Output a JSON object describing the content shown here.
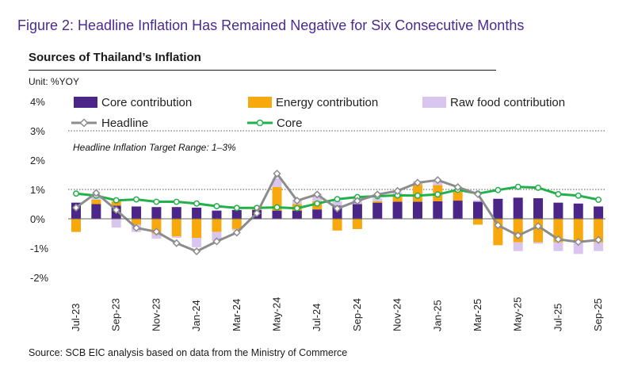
{
  "figure_title": "Figure 2: Headline Inflation Has Remained Negative for Six Consecutive Months",
  "source": "Source: SCB EIC analysis based on data from the Ministry of Commerce",
  "colors": {
    "core_contribution": "#4b2587",
    "energy_contribution": "#f7a80d",
    "raw_food_contribution": "#d9c6ee",
    "headline": "#8c8c8c",
    "core": "#22b04b",
    "title": "#4b2a8f"
  },
  "chart_data": {
    "type": "bar",
    "title": "Sources of Thailand’s Inflation",
    "ylabel": "Unit: %YOY",
    "xlabel": "",
    "ylim": [
      -2,
      4
    ],
    "yticks": [
      "-2%",
      "-1%",
      "0%",
      "1%",
      "2%",
      "3%",
      "4%"
    ],
    "ytick_values": [
      -2,
      -1,
      0,
      1,
      2,
      3,
      4
    ],
    "categories": [
      "Jul-23",
      "Aug-23",
      "Sep-23",
      "Oct-23",
      "Nov-23",
      "Dec-23",
      "Jan-24",
      "Feb-24",
      "Mar-24",
      "Apr-24",
      "May-24",
      "Jun-24",
      "Jul-24",
      "Aug-24",
      "Sep-24",
      "Oct-24",
      "Nov-24",
      "Dec-24",
      "Jan-25",
      "Feb-25",
      "Mar-25",
      "Apr-25",
      "May-25",
      "Jun-25",
      "Jul-25",
      "Aug-25",
      "Sep-25"
    ],
    "xtick_labels": [
      "Jul-23",
      "Sep-23",
      "Nov-23",
      "Jan-24",
      "Mar-24",
      "May-24",
      "Jul-24",
      "Sep-24",
      "Nov-24",
      "Jan-25",
      "Mar-25",
      "May-25",
      "Jul-25",
      "Sep-25"
    ],
    "series": [
      {
        "name": "Core contribution",
        "type": "bar",
        "values": [
          0.55,
          0.5,
          0.45,
          0.42,
          0.4,
          0.4,
          0.38,
          0.28,
          0.3,
          0.3,
          0.28,
          0.28,
          0.32,
          0.45,
          0.5,
          0.55,
          0.58,
          0.58,
          0.6,
          0.62,
          0.58,
          0.68,
          0.72,
          0.7,
          0.55,
          0.52,
          0.42
        ]
      },
      {
        "name": "Energy contribution",
        "type": "bar",
        "values": [
          -0.45,
          0.15,
          0.15,
          -0.2,
          -0.5,
          -0.6,
          -0.65,
          -0.45,
          -0.35,
          0.1,
          0.8,
          0.22,
          0.28,
          -0.4,
          -0.35,
          0.05,
          0.2,
          0.6,
          0.55,
          0.3,
          -0.2,
          -0.9,
          -0.8,
          -0.8,
          -0.8,
          -0.75,
          -0.8
        ]
      },
      {
        "name": "Raw food contribution",
        "type": "bar",
        "values": [
          0.0,
          0.1,
          -0.3,
          -0.25,
          -0.18,
          -0.05,
          -0.32,
          -0.3,
          -0.05,
          -0.02,
          0.3,
          0.15,
          0.25,
          0.15,
          0.2,
          0.1,
          0.12,
          0.1,
          0.12,
          0.05,
          0.05,
          0.02,
          -0.3,
          -0.05,
          -0.3,
          -0.45,
          -0.3
        ]
      },
      {
        "name": "Headline",
        "type": "line",
        "values": [
          0.38,
          0.88,
          0.3,
          -0.31,
          -0.44,
          -0.83,
          -1.11,
          -0.77,
          -0.47,
          0.19,
          1.54,
          0.62,
          0.83,
          0.35,
          0.61,
          0.83,
          0.95,
          1.23,
          1.32,
          1.08,
          0.84,
          -0.22,
          -0.57,
          -0.25,
          -0.7,
          -0.79,
          -0.72
        ]
      },
      {
        "name": "Core",
        "type": "line",
        "values": [
          0.86,
          0.79,
          0.63,
          0.66,
          0.58,
          0.58,
          0.52,
          0.43,
          0.37,
          0.37,
          0.39,
          0.36,
          0.52,
          0.67,
          0.74,
          0.77,
          0.8,
          0.79,
          0.83,
          0.99,
          0.86,
          0.98,
          1.09,
          1.06,
          0.84,
          0.79,
          0.65
        ]
      }
    ],
    "target_range": [
      1,
      3
    ],
    "annotation": "Headline Inflation Target Range: 1–3%",
    "legend_position": "top"
  }
}
